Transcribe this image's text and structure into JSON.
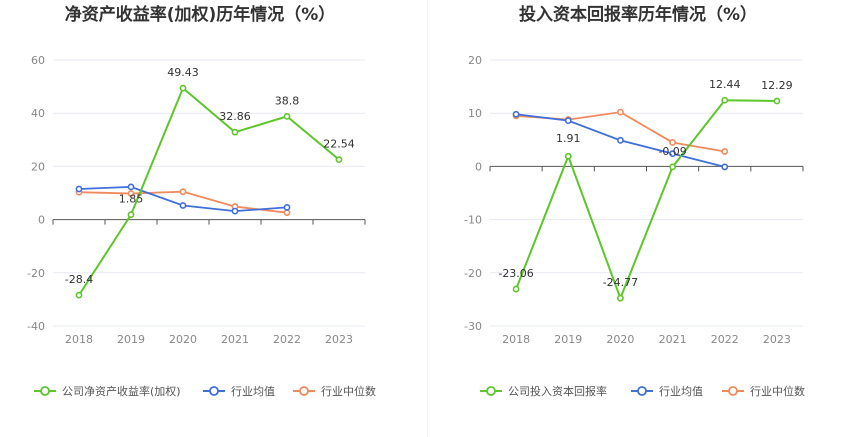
{
  "chart_data": [
    {
      "type": "line",
      "title": "净资产收益率(加权)历年情况（%）",
      "xlabel": "",
      "ylabel": "",
      "categories": [
        "2018",
        "2019",
        "2020",
        "2021",
        "2022",
        "2023"
      ],
      "ylim": [
        -40,
        60
      ],
      "yticks": [
        60,
        40,
        20,
        0,
        -20,
        -40
      ],
      "grid": true,
      "legend_position": "bottom",
      "series": [
        {
          "name": "公司净资产收益率(加权)",
          "color": "#5cc62a",
          "values": [
            -28.4,
            1.85,
            49.43,
            32.86,
            38.8,
            22.54
          ],
          "labels": [
            "-28.4",
            "1.85",
            "49.43",
            "32.86",
            "38.8",
            "22.54"
          ]
        },
        {
          "name": "行业均值",
          "color": "#3f6fd8",
          "values": [
            11.5,
            12.3,
            5.3,
            3.2,
            4.6,
            null
          ]
        },
        {
          "name": "行业中位数",
          "color": "#f08a5d",
          "values": [
            10.3,
            9.8,
            10.5,
            4.9,
            2.6,
            null
          ]
        }
      ]
    },
    {
      "type": "line",
      "title": "投入资本回报率历年情况（%）",
      "xlabel": "",
      "ylabel": "",
      "categories": [
        "2018",
        "2019",
        "2020",
        "2021",
        "2022",
        "2023"
      ],
      "ylim": [
        -30,
        20
      ],
      "yticks": [
        20,
        10,
        0,
        -10,
        -20,
        -30
      ],
      "grid": true,
      "legend_position": "bottom",
      "series": [
        {
          "name": "公司投入资本回报率",
          "color": "#5cc62a",
          "values": [
            -23.06,
            1.91,
            -24.77,
            -0.09,
            12.44,
            12.29
          ],
          "labels": [
            "-23.06",
            "1.91",
            "-24.77",
            "-0.09",
            "12.44",
            "12.29"
          ]
        },
        {
          "name": "行业均值",
          "color": "#3f6fd8",
          "values": [
            9.8,
            8.6,
            4.9,
            2.4,
            -0.1,
            null
          ]
        },
        {
          "name": "行业中位数",
          "color": "#f08a5d",
          "values": [
            9.5,
            8.8,
            10.2,
            4.5,
            2.8,
            null
          ]
        }
      ]
    }
  ]
}
